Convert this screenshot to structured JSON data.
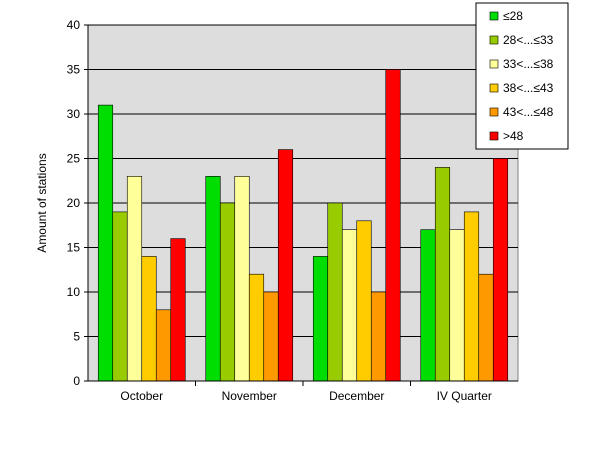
{
  "chart_data": {
    "type": "bar",
    "ylabel": "Amount of stations",
    "ylim": [
      0,
      40
    ],
    "yticks": [
      0,
      5,
      10,
      15,
      20,
      25,
      30,
      35,
      40
    ],
    "grid": true,
    "legend_position": "top-right",
    "categories": [
      "October",
      "November",
      "December",
      "IV Quarter"
    ],
    "series": [
      {
        "name": "≤28",
        "color": "#00dd00",
        "values": [
          31,
          23,
          14,
          17
        ]
      },
      {
        "name": "28<...≤33",
        "color": "#99cc00",
        "values": [
          19,
          20,
          20,
          24
        ]
      },
      {
        "name": "33<...≤38",
        "color": "#ffff99",
        "values": [
          23,
          23,
          17,
          17
        ]
      },
      {
        "name": "38<...≤43",
        "color": "#ffcc00",
        "values": [
          14,
          12,
          18,
          19
        ]
      },
      {
        "name": "43<...≤48",
        "color": "#ff9900",
        "values": [
          8,
          10,
          10,
          12
        ]
      },
      {
        "name": ">48",
        "color": "#ff0000",
        "values": [
          16,
          26,
          35,
          25
        ]
      }
    ]
  }
}
